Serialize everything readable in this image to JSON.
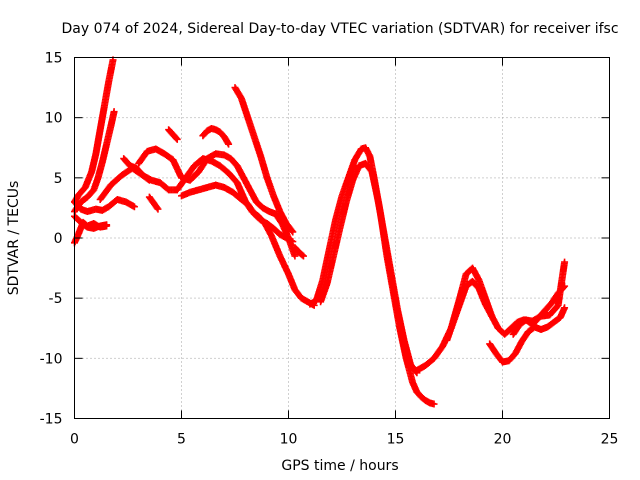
{
  "chart_data": {
    "type": "scatter",
    "title": "Day 074 of 2024, Sidereal Day-to-day VTEC variation (SDTVAR) for receiver ifsc",
    "xlabel": "GPS time / hours",
    "ylabel": "SDTVAR / TECUs",
    "xlim": [
      0,
      25
    ],
    "ylim": [
      -15,
      15
    ],
    "xticks": [
      0,
      5,
      10,
      15,
      20,
      25
    ],
    "yticks": [
      -15,
      -10,
      -5,
      0,
      5,
      10,
      15
    ],
    "grid": true,
    "marker": "plus",
    "color": "#ff0000",
    "series": [
      {
        "x": [
          0.0,
          0.2,
          0.5,
          0.8,
          1.0,
          1.2,
          1.4,
          1.6,
          1.8
        ],
        "y": [
          3.0,
          3.6,
          4.2,
          5.5,
          7.0,
          9.0,
          11.0,
          13.0,
          14.8
        ]
      },
      {
        "x": [
          0.0,
          0.3,
          0.6,
          0.9,
          1.1,
          1.3,
          1.5,
          1.7,
          1.85
        ],
        "y": [
          2.2,
          3.0,
          3.4,
          4.0,
          5.0,
          6.3,
          7.8,
          9.3,
          10.5
        ]
      },
      {
        "x": [
          0.0,
          0.3,
          0.6,
          1.0,
          1.3,
          1.6,
          2.0,
          2.4,
          2.8
        ],
        "y": [
          3.0,
          2.4,
          2.2,
          2.4,
          2.3,
          2.6,
          3.2,
          3.0,
          2.6
        ]
      },
      {
        "x": [
          0.0,
          0.2,
          0.4,
          0.6,
          0.9,
          1.2,
          1.5
        ],
        "y": [
          -0.4,
          0.4,
          1.3,
          1.0,
          1.2,
          0.9,
          1.0
        ]
      },
      {
        "x": [
          0.0,
          0.3,
          0.6,
          0.9,
          1.2,
          1.5
        ],
        "y": [
          1.8,
          1.3,
          0.9,
          0.8,
          1.0,
          1.1
        ]
      },
      {
        "x": [
          1.2,
          1.7,
          2.2,
          2.7,
          3.2,
          3.6,
          4.0,
          4.4,
          4.8,
          5.2,
          5.6,
          6.0,
          6.4,
          6.8,
          7.2,
          7.6,
          8.0,
          8.3,
          8.6,
          8.9,
          9.2,
          9.6,
          10.0,
          10.3,
          10.6,
          10.9,
          11.2
        ],
        "y": [
          3.2,
          4.4,
          5.2,
          5.8,
          5.2,
          4.8,
          4.6,
          4.0,
          4.0,
          5.0,
          6.0,
          6.6,
          6.4,
          6.0,
          5.4,
          4.6,
          3.0,
          2.2,
          1.8,
          1.2,
          0.2,
          -1.5,
          -3.0,
          -4.3,
          -5.0,
          -5.3,
          -5.6
        ]
      },
      {
        "x": [
          3.0,
          3.4,
          3.8,
          4.2,
          4.6,
          5.0,
          5.4,
          5.8,
          6.2,
          6.6,
          7.0,
          7.3,
          7.6,
          7.9,
          8.2,
          8.5,
          8.8,
          9.1,
          9.4,
          9.7,
          10.0,
          10.3
        ],
        "y": [
          6.2,
          7.2,
          7.4,
          7.0,
          6.5,
          5.0,
          4.8,
          5.5,
          6.6,
          7.0,
          6.9,
          6.6,
          6.0,
          5.0,
          4.0,
          3.0,
          2.5,
          2.2,
          2.0,
          1.2,
          0.0,
          -1.5
        ]
      },
      {
        "x": [
          2.3,
          2.6,
          2.9,
          3.2,
          3.5
        ],
        "y": [
          6.6,
          6.0,
          5.8,
          5.2,
          4.8
        ]
      },
      {
        "x": [
          3.5,
          3.7,
          3.9
        ],
        "y": [
          3.4,
          2.9,
          2.4
        ]
      },
      {
        "x": [
          4.4,
          4.6,
          4.8
        ],
        "y": [
          9.0,
          8.6,
          8.2
        ]
      },
      {
        "x": [
          6.0,
          6.2,
          6.4,
          6.6,
          6.8,
          7.0,
          7.2
        ],
        "y": [
          8.5,
          8.9,
          9.1,
          9.0,
          8.8,
          8.4,
          7.8
        ]
      },
      {
        "x": [
          5.0,
          5.4,
          5.8,
          6.2,
          6.6,
          7.0,
          7.4,
          7.8,
          8.1,
          8.4,
          8.7,
          9.0,
          9.3,
          9.6,
          9.9,
          10.2
        ],
        "y": [
          3.5,
          3.8,
          4.0,
          4.2,
          4.4,
          4.2,
          3.8,
          3.2,
          2.8,
          2.0,
          1.5,
          1.2,
          0.8,
          0.3,
          0.0,
          -0.3
        ]
      },
      {
        "x": [
          7.5,
          7.8,
          8.1,
          8.4,
          8.7,
          9.0,
          9.3,
          9.6,
          9.9,
          10.2
        ],
        "y": [
          12.5,
          11.6,
          10.0,
          8.4,
          6.8,
          5.0,
          3.5,
          2.2,
          1.2,
          0.5
        ]
      },
      {
        "x": [
          10.3,
          10.5,
          10.7
        ],
        "y": [
          -0.8,
          -1.2,
          -1.5
        ]
      },
      {
        "x": [
          11.0,
          11.3,
          11.6,
          11.9,
          12.2,
          12.5,
          12.8,
          13.1,
          13.4,
          13.6,
          13.8,
          14.0,
          14.3,
          14.6,
          14.9,
          15.2,
          15.5,
          15.8,
          16.0,
          16.2,
          16.4,
          16.6,
          16.8
        ],
        "y": [
          -5.5,
          -5.2,
          -3.5,
          -1.0,
          1.5,
          3.5,
          5.0,
          6.5,
          7.4,
          7.5,
          6.8,
          5.0,
          2.0,
          -1.5,
          -4.5,
          -7.5,
          -10.0,
          -12.0,
          -12.8,
          -13.2,
          -13.5,
          -13.7,
          -13.8
        ]
      },
      {
        "x": [
          11.5,
          11.8,
          12.1,
          12.4,
          12.7,
          13.0,
          13.3,
          13.6,
          13.9,
          14.2,
          14.5,
          14.8,
          15.1,
          15.4,
          15.7,
          16.0
        ],
        "y": [
          -5.3,
          -3.8,
          -1.5,
          0.8,
          3.0,
          4.8,
          6.0,
          6.2,
          5.5,
          3.0,
          0.0,
          -3.0,
          -6.0,
          -8.5,
          -10.5,
          -11.2
        ]
      },
      {
        "x": [
          16.0,
          16.4,
          16.8,
          17.2,
          17.6,
          18.0,
          18.3,
          18.6,
          18.9,
          19.2,
          19.5,
          19.8,
          20.1,
          20.4,
          20.7,
          21.0,
          21.4,
          21.8,
          22.2,
          22.6,
          22.9
        ],
        "y": [
          -11.0,
          -10.6,
          -10.0,
          -9.0,
          -7.5,
          -5.0,
          -3.0,
          -2.5,
          -3.5,
          -5.0,
          -6.5,
          -7.5,
          -8.0,
          -7.5,
          -7.0,
          -6.8,
          -6.9,
          -6.5,
          -6.4,
          -5.6,
          -2.0
        ]
      },
      {
        "x": [
          17.4,
          17.7,
          18.0,
          18.3,
          18.6,
          18.9,
          19.2,
          19.5
        ],
        "y": [
          -8.5,
          -7.0,
          -5.5,
          -4.0,
          -3.6,
          -4.2,
          -5.5,
          -6.5
        ]
      },
      {
        "x": [
          19.4,
          19.7,
          20.0,
          20.3,
          20.6,
          20.9,
          21.2,
          21.5,
          21.8,
          22.1,
          22.4,
          22.7,
          22.9
        ],
        "y": [
          -8.8,
          -9.6,
          -10.3,
          -10.2,
          -9.6,
          -8.6,
          -7.8,
          -7.4,
          -7.6,
          -7.4,
          -7.0,
          -6.6,
          -5.8
        ]
      },
      {
        "x": [
          20.5,
          20.8,
          21.1,
          21.4,
          21.7,
          22.0,
          22.3,
          22.6,
          22.9
        ],
        "y": [
          -8.0,
          -7.2,
          -6.8,
          -7.2,
          -6.6,
          -6.0,
          -5.4,
          -4.6,
          -4.0
        ]
      }
    ]
  }
}
